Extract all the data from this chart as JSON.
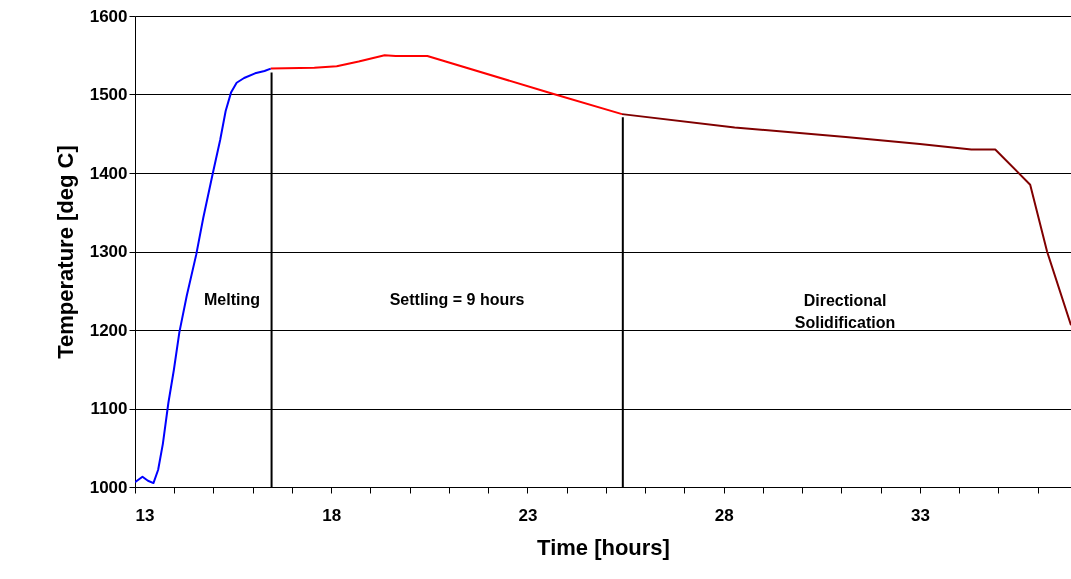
{
  "chart_data": {
    "type": "line",
    "xlabel": "Time [hours]",
    "ylabel": "Temperature [deg C]",
    "xlim": [
      13,
      36.85
    ],
    "ylim": [
      1000,
      1600
    ],
    "xticks": [
      13,
      {
        "value": 14,
        "label": null
      },
      {
        "value": 15,
        "label": null
      },
      {
        "value": 16,
        "label": null
      },
      {
        "value": 17,
        "label": null
      },
      18,
      {
        "value": 19,
        "label": null
      },
      {
        "value": 20,
        "label": null
      },
      {
        "value": 21,
        "label": null
      },
      {
        "value": 22,
        "label": null
      },
      23,
      {
        "value": 24,
        "label": null
      },
      {
        "value": 25,
        "label": null
      },
      {
        "value": 26,
        "label": null
      },
      {
        "value": 27,
        "label": null
      },
      28,
      {
        "value": 29,
        "label": null
      },
      {
        "value": 30,
        "label": null
      },
      {
        "value": 31,
        "label": null
      },
      {
        "value": 32,
        "label": null
      },
      33,
      {
        "value": 34,
        "label": null
      },
      {
        "value": 35,
        "label": null
      },
      {
        "value": 36,
        "label": null
      }
    ],
    "yticks": [
      1000,
      1100,
      1200,
      1300,
      1400,
      1500,
      1600
    ],
    "grid": "y",
    "marker": "none",
    "line_style": "solid",
    "series": [
      {
        "color": "#0000ff",
        "x": [
          13.0,
          13.19,
          13.33,
          13.47,
          13.59,
          13.71,
          13.85,
          13.99,
          14.13,
          14.32,
          14.56,
          14.74,
          14.98,
          15.17,
          15.31,
          15.45,
          15.59,
          15.78,
          16.06,
          16.3,
          16.46
        ],
        "values": [
          1006,
          1013,
          1008,
          1005,
          1022,
          1055,
          1107,
          1149,
          1197,
          1244,
          1296,
          1343,
          1399,
          1442,
          1479,
          1503,
          1515,
          1521,
          1527,
          1530,
          1533
        ]
      },
      {
        "color": "#ff0000",
        "x": [
          16.46,
          17.57,
          18.14,
          18.7,
          19.36,
          19.64,
          20.45,
          23.58,
          25.41
        ],
        "values": [
          1533,
          1534,
          1536,
          1542,
          1550,
          1549,
          1549,
          1502,
          1475
        ]
      },
      {
        "color": "#800000",
        "x": [
          25.41,
          28.28,
          31.11,
          33.0,
          34.31,
          34.92,
          35.81,
          36.24,
          36.85
        ],
        "values": [
          1475,
          1458,
          1446,
          1437,
          1430,
          1430,
          1385,
          1300,
          1206
        ]
      },
      {
        "color": "#000000",
        "x": [
          16.48,
          16.48
        ],
        "values": [
          1000,
          1528
        ]
      },
      {
        "color": "#000000",
        "x": [
          25.43,
          25.43
        ],
        "values": [
          1000,
          1471
        ]
      }
    ],
    "annotations": [
      "Melting",
      "Settling = 9 hours",
      "Directional\nSolidification"
    ]
  }
}
